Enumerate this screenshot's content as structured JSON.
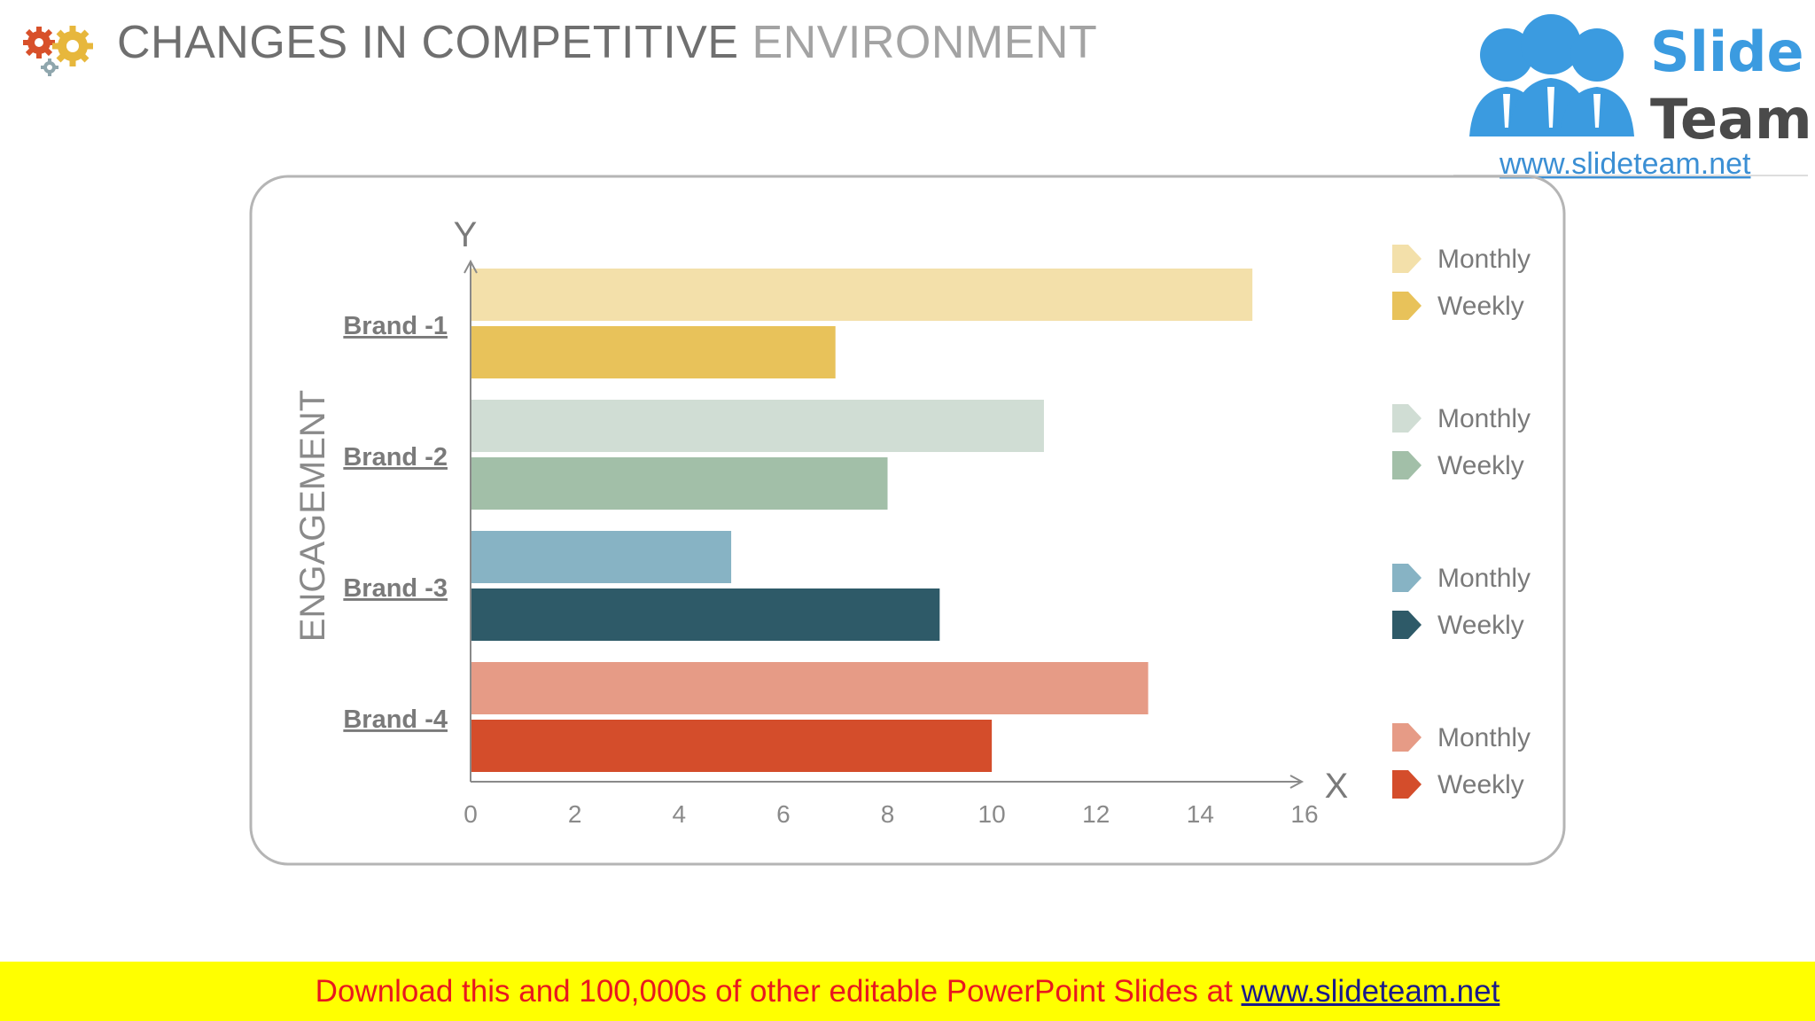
{
  "title": {
    "part1": "CHANGES IN COMPETITIVE",
    "part2": "ENVIRONMENT"
  },
  "logo": {
    "line1": "Slide",
    "line2": "Team",
    "url": "www.slideteam.net"
  },
  "banner": {
    "text": "Download this and 100,000s of other editable PowerPoint Slides at",
    "link": "www.slideteam.net"
  },
  "chart_data": {
    "type": "bar",
    "orientation": "horizontal",
    "categories": [
      "Brand -1",
      "Brand -2",
      "Brand -3",
      "Brand -4"
    ],
    "series": [
      {
        "name": "Monthly",
        "values": [
          15,
          11,
          5,
          13
        ]
      },
      {
        "name": "Weekly",
        "values": [
          7,
          8,
          9,
          10
        ]
      }
    ],
    "colors": {
      "Monthly": [
        "#f3e0aa",
        "#d0ddd4",
        "#87b3c4",
        "#e69b86"
      ],
      "Weekly": [
        "#e8c25a",
        "#a2bfa8",
        "#2e5a68",
        "#d44d2b"
      ]
    },
    "x_ticks": [
      "0",
      "2",
      "4",
      "6",
      "8",
      "10",
      "12",
      "14",
      "16"
    ],
    "xlim": [
      0,
      16
    ],
    "x_axis_letter": "X",
    "y_axis_letter": "Y",
    "ylabel": "ENGAGEMENT",
    "legend": [
      {
        "label": "Monthly",
        "color": "#f3e0aa"
      },
      {
        "label": "Weekly",
        "color": "#e8c25a"
      },
      {
        "label": "Monthly",
        "color": "#d0ddd4"
      },
      {
        "label": "Weekly",
        "color": "#a2bfa8"
      },
      {
        "label": "Monthly",
        "color": "#87b3c4"
      },
      {
        "label": "Weekly",
        "color": "#2e5a68"
      },
      {
        "label": "Monthly",
        "color": "#e69b86"
      },
      {
        "label": "Weekly",
        "color": "#d44d2b"
      }
    ],
    "legend_position": "right",
    "grid": false
  }
}
